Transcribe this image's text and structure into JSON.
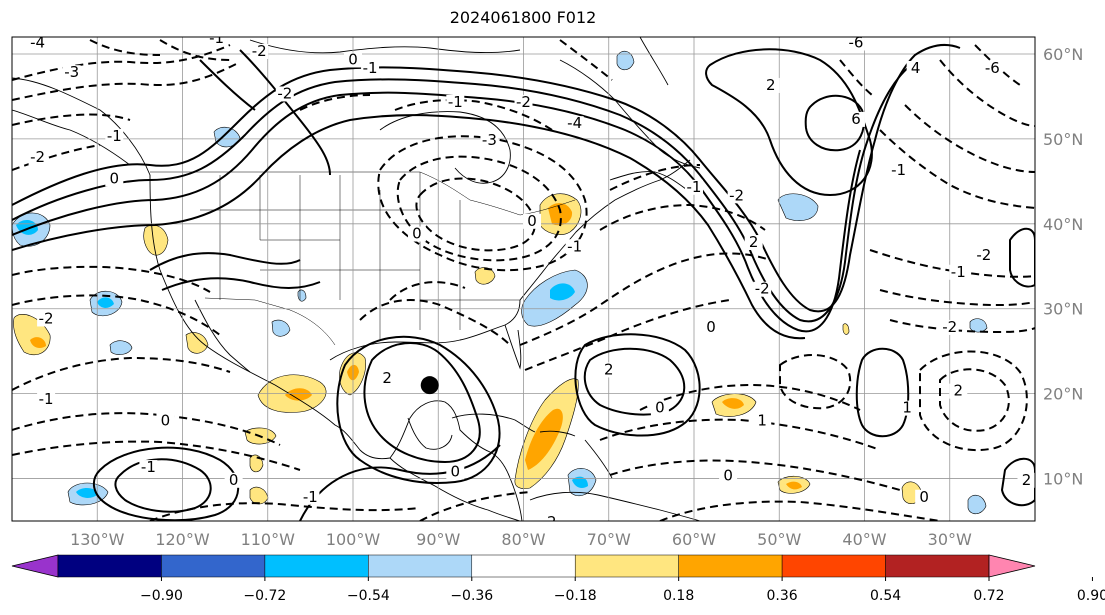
{
  "title": "2024061800 F012",
  "map": {
    "lon_min": -140,
    "lon_max": -20,
    "lat_min": 5,
    "lat_max": 62,
    "lon_ticks": [
      {
        "value": -130,
        "label": "130°W"
      },
      {
        "value": -120,
        "label": "120°W"
      },
      {
        "value": -110,
        "label": "110°W"
      },
      {
        "value": -100,
        "label": "100°W"
      },
      {
        "value": -90,
        "label": "90°W"
      },
      {
        "value": -80,
        "label": "80°W"
      },
      {
        "value": -70,
        "label": "70°W"
      },
      {
        "value": -60,
        "label": "60°W"
      },
      {
        "value": -50,
        "label": "50°W"
      },
      {
        "value": -40,
        "label": "40°W"
      },
      {
        "value": -30,
        "label": "30°W"
      }
    ],
    "lat_ticks": [
      {
        "value": 10,
        "label": "10°N"
      },
      {
        "value": 20,
        "label": "20°N"
      },
      {
        "value": 30,
        "label": "30°N"
      },
      {
        "value": 40,
        "label": "40°N"
      },
      {
        "value": 50,
        "label": "50°N"
      },
      {
        "value": 60,
        "label": "60°N"
      }
    ],
    "marker": {
      "lon": -91,
      "lat": 21
    }
  },
  "colorbar": {
    "colors": [
      "#9933cc",
      "#000080",
      "#3366cc",
      "#00bfff",
      "#add8f8",
      "#ffffff",
      "#ffe680",
      "#ffa500",
      "#ff4500",
      "#b22222",
      "#ff85b0"
    ],
    "labels": [
      "−0.90",
      "−0.72",
      "−0.54",
      "−0.36",
      "−0.18",
      "0.18",
      "0.36",
      "0.54",
      "0.72",
      "0.90"
    ]
  },
  "contour_labels": [
    {
      "text": "-4",
      "lon": -137,
      "lat": 61
    },
    {
      "text": "-1",
      "lon": -116,
      "lat": 61.5
    },
    {
      "text": "-2",
      "lon": -111,
      "lat": 60
    },
    {
      "text": "-3",
      "lon": -133,
      "lat": 57.5
    },
    {
      "text": "-1",
      "lon": -128,
      "lat": 50
    },
    {
      "text": "-2",
      "lon": -137,
      "lat": 47.5
    },
    {
      "text": "0",
      "lon": -128,
      "lat": 45
    },
    {
      "text": "-2",
      "lon": -136,
      "lat": 28.5
    },
    {
      "text": "-1",
      "lon": -136,
      "lat": 19
    },
    {
      "text": "0",
      "lon": -122,
      "lat": 16.5
    },
    {
      "text": "-1",
      "lon": -124,
      "lat": 11
    },
    {
      "text": "0",
      "lon": -114,
      "lat": 9.5
    },
    {
      "text": "-1",
      "lon": -105,
      "lat": 7.5
    },
    {
      "text": "2",
      "lon": -96,
      "lat": 21.5
    },
    {
      "text": "0",
      "lon": -88,
      "lat": 10.5
    },
    {
      "text": "-2",
      "lon": -77,
      "lat": 4.5
    },
    {
      "text": "0",
      "lon": -92.5,
      "lat": 38.5
    },
    {
      "text": "-3",
      "lon": -84,
      "lat": 49.5
    },
    {
      "text": "-4",
      "lon": -74,
      "lat": 51.5
    },
    {
      "text": "-2",
      "lon": -80,
      "lat": 54
    },
    {
      "text": "0",
      "lon": -100,
      "lat": 59
    },
    {
      "text": "-2",
      "lon": -108,
      "lat": 55
    },
    {
      "text": "0",
      "lon": -79,
      "lat": 40
    },
    {
      "text": "-1",
      "lon": -74,
      "lat": 37
    },
    {
      "text": "2",
      "lon": -70,
      "lat": 22.5
    },
    {
      "text": "0",
      "lon": -58,
      "lat": 27.5
    },
    {
      "text": "0",
      "lon": -64,
      "lat": 18
    },
    {
      "text": "1",
      "lon": -52,
      "lat": 16.5
    },
    {
      "text": "0",
      "lon": -56,
      "lat": 10
    },
    {
      "text": "-2",
      "lon": -52,
      "lat": 32
    },
    {
      "text": "-1",
      "lon": -60,
      "lat": 44
    },
    {
      "text": "-2",
      "lon": -55,
      "lat": 43
    },
    {
      "text": "2",
      "lon": -53,
      "lat": 37.5
    },
    {
      "text": "2",
      "lon": -51,
      "lat": 56
    },
    {
      "text": "-6",
      "lon": -41,
      "lat": 61
    },
    {
      "text": "4",
      "lon": -34,
      "lat": 58
    },
    {
      "text": "-6",
      "lon": -25,
      "lat": 58
    },
    {
      "text": "6",
      "lon": -41,
      "lat": 52
    },
    {
      "text": "-1",
      "lon": -36,
      "lat": 46
    },
    {
      "text": "-2",
      "lon": -26,
      "lat": 36
    },
    {
      "text": "-1",
      "lon": -29,
      "lat": 34
    },
    {
      "text": "-2",
      "lon": -30,
      "lat": 27.5
    },
    {
      "text": "2",
      "lon": -29,
      "lat": 20
    },
    {
      "text": "1",
      "lon": -35,
      "lat": 18
    },
    {
      "text": "0",
      "lon": -33,
      "lat": 7.5
    },
    {
      "text": "2",
      "lon": -21,
      "lat": 9.5
    },
    {
      "text": "-1",
      "lon": -98,
      "lat": 58
    },
    {
      "text": "-1",
      "lon": -88,
      "lat": 54
    }
  ]
}
